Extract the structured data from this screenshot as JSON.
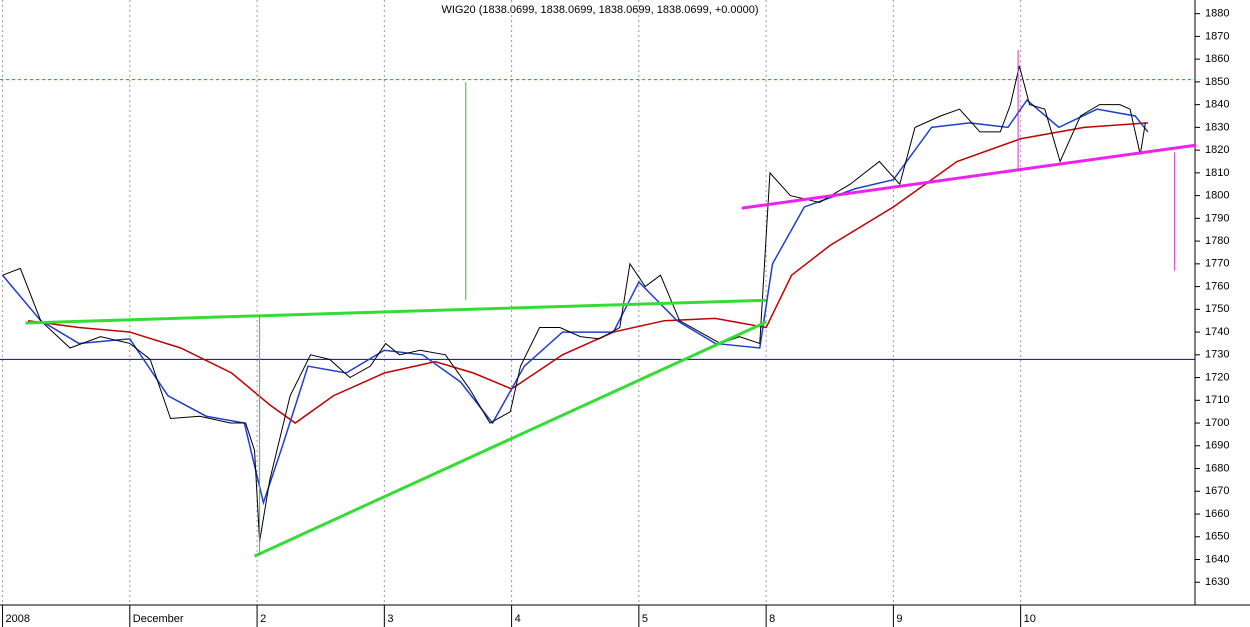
{
  "chart_data": {
    "type": "line",
    "title": "WIG20 (1838.0699, 1838.0699, 1838.0699, 1838.0699, +0.0000)",
    "xlim": [
      -2.02,
      7.37
    ],
    "xticks": [
      {
        "value": -2,
        "label": "2008"
      },
      {
        "value": -1,
        "label": "December"
      },
      {
        "value": 0,
        "label": "2"
      },
      {
        "value": 1,
        "label": "3"
      },
      {
        "value": 2,
        "label": "4"
      },
      {
        "value": 3,
        "label": "5"
      },
      {
        "value": 4,
        "label": "8"
      },
      {
        "value": 5,
        "label": "9"
      },
      {
        "value": 6,
        "label": "10"
      }
    ],
    "ylim": [
      1620,
      1886
    ],
    "yticks": [
      1630,
      1640,
      1650,
      1660,
      1670,
      1680,
      1690,
      1700,
      1710,
      1720,
      1730,
      1740,
      1750,
      1760,
      1770,
      1780,
      1790,
      1800,
      1810,
      1820,
      1830,
      1840,
      1850,
      1860,
      1870,
      1880
    ],
    "grid": true,
    "series": [
      {
        "color": "#c00000",
        "width": 1.5,
        "x": [
          -1.8,
          -1.4,
          -1.0,
          -0.6,
          -0.2,
          0.1,
          0.3,
          0.6,
          1.0,
          1.4,
          1.7,
          2.0,
          2.4,
          2.8,
          3.2,
          3.6,
          4.0,
          4.2,
          4.5,
          5.0,
          5.5,
          6.0,
          6.5,
          7.0
        ],
        "values": [
          1745,
          1742,
          1740,
          1733,
          1722,
          1708,
          1700,
          1712,
          1722,
          1727,
          1722,
          1715,
          1730,
          1740,
          1745,
          1746,
          1742,
          1765,
          1778,
          1795,
          1815,
          1825,
          1830,
          1832
        ]
      },
      {
        "color": "#1f3fd0",
        "width": 1.5,
        "x": [
          -2.0,
          -1.7,
          -1.4,
          -1.0,
          -0.7,
          -0.4,
          -0.1,
          0.05,
          0.2,
          0.4,
          0.7,
          1.0,
          1.3,
          1.6,
          1.85,
          2.1,
          2.4,
          2.8,
          3.0,
          3.3,
          3.6,
          3.95,
          4.05,
          4.3,
          4.7,
          5.0,
          5.3,
          5.6,
          5.9,
          6.05,
          6.3,
          6.6,
          6.9,
          7.0
        ],
        "values": [
          1765,
          1745,
          1735,
          1737,
          1712,
          1703,
          1700,
          1665,
          1690,
          1725,
          1722,
          1732,
          1730,
          1718,
          1700,
          1725,
          1740,
          1740,
          1762,
          1745,
          1735,
          1733,
          1770,
          1795,
          1803,
          1807,
          1830,
          1832,
          1830,
          1842,
          1830,
          1838,
          1835,
          1828
        ]
      },
      {
        "color": "#000000",
        "width": 1,
        "x": [
          -2.0,
          -1.86,
          -1.7,
          -1.47,
          -1.23,
          -1.0,
          -0.84,
          -0.68,
          -0.45,
          -0.21,
          -0.09,
          -0.02,
          0.02,
          0.1,
          0.26,
          0.42,
          0.57,
          0.73,
          0.89,
          1.01,
          1.12,
          1.28,
          1.48,
          1.67,
          1.83,
          1.99,
          2.07,
          2.22,
          2.38,
          2.54,
          2.69,
          2.85,
          2.93,
          3.05,
          3.17,
          3.32,
          3.48,
          3.64,
          3.79,
          3.95,
          4.03,
          4.19,
          4.42,
          4.66,
          4.89,
          5.05,
          5.17,
          5.37,
          5.52,
          5.68,
          5.84,
          5.92,
          5.99,
          6.07,
          6.19,
          6.31,
          6.47,
          6.62,
          6.78,
          6.86,
          6.94,
          6.98
        ],
        "values": [
          1765,
          1768,
          1745,
          1733,
          1738,
          1735,
          1728,
          1702,
          1703,
          1700,
          1700,
          1688,
          1648,
          1675,
          1712,
          1730,
          1728,
          1720,
          1725,
          1735,
          1730,
          1732,
          1730,
          1715,
          1700,
          1705,
          1725,
          1742,
          1742,
          1738,
          1737,
          1742,
          1770,
          1760,
          1765,
          1745,
          1740,
          1735,
          1738,
          1735,
          1810,
          1800,
          1797,
          1805,
          1815,
          1805,
          1830,
          1835,
          1838,
          1828,
          1828,
          1840,
          1857,
          1840,
          1838,
          1815,
          1835,
          1840,
          1840,
          1838,
          1818,
          1832
        ]
      }
    ],
    "hlines": [
      {
        "value": 1851,
        "color": "#00c000",
        "dashed": true
      },
      {
        "value": 1728,
        "color": "#0000c0",
        "dashed": false
      }
    ],
    "lines": [
      {
        "color": "#33dd33",
        "width": 3,
        "x": [
          -1.82,
          4.0
        ],
        "y": [
          1744,
          1754
        ]
      },
      {
        "color": "#33dd33",
        "width": 3,
        "x": [
          -0.02,
          4.0
        ],
        "y": [
          1641.5,
          1744.4
        ]
      },
      {
        "color": "#ee22ee",
        "width": 3,
        "x": [
          3.81,
          7.38
        ],
        "y": [
          1794.5,
          1822.2
        ]
      },
      {
        "color": "#22cc22",
        "width": 1,
        "x": [
          1.64,
          1.64
        ],
        "y": [
          1754,
          1850
        ]
      },
      {
        "color": "#22cc22",
        "width": 1,
        "x": [
          0.02,
          0.02
        ],
        "y": [
          1747.5,
          1642
        ]
      },
      {
        "color": "#cc33cc",
        "width": 1,
        "x": [
          5.98,
          5.98
        ],
        "y": [
          1864,
          1811
        ]
      },
      {
        "color": "#cc33cc",
        "width": 1,
        "x": [
          7.21,
          7.21
        ],
        "y": [
          1819,
          1767
        ]
      }
    ]
  }
}
